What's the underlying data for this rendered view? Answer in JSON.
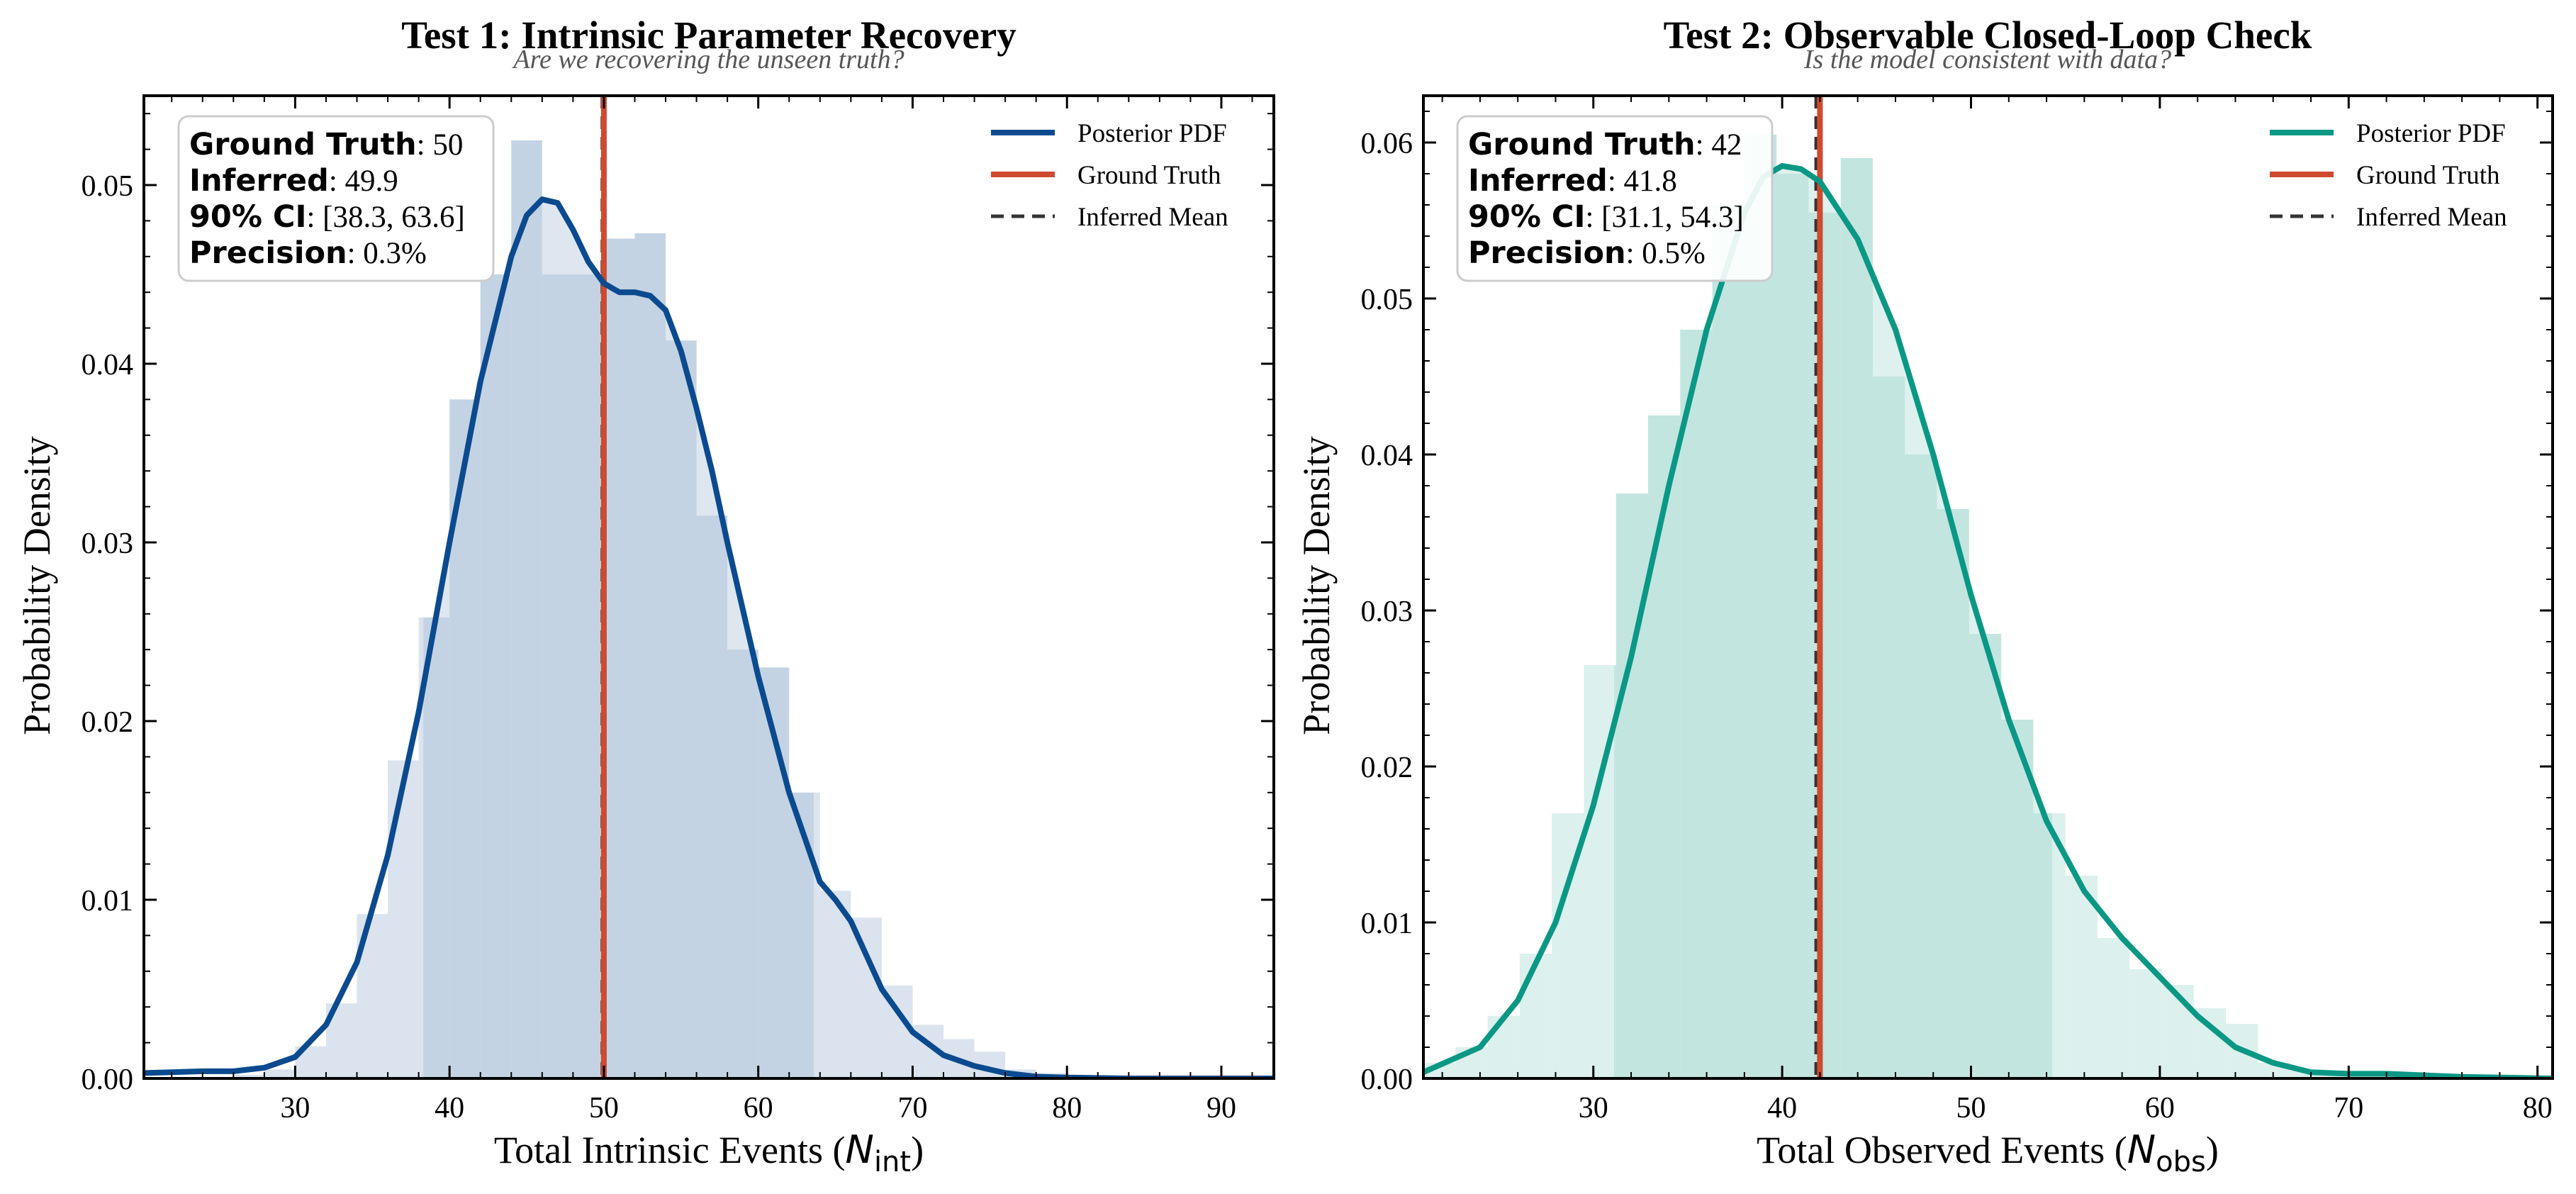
{
  "panels": [
    {
      "title": "Test 1: Intrinsic Parameter Recovery",
      "subtitle": "Are we recovering the unseen truth?",
      "xlabel": "Total Intrinsic Events (",
      "xlabel_sym": "N",
      "xlabel_sub": "int",
      "xlabel_close": ")",
      "ylabel": "Probability Density",
      "infobox": [
        {
          "key": "Ground Truth",
          "value": ": 50"
        },
        {
          "key": "Inferred",
          "value": ": 49.9"
        },
        {
          "key": "90% CI",
          "value": ": [38.3, 63.6]"
        },
        {
          "key": "Precision",
          "value": ": 0.3%"
        }
      ],
      "legend": [
        "Posterior PDF",
        "Ground Truth",
        "Inferred Mean"
      ]
    },
    {
      "title": "Test 2: Observable Closed-Loop Check",
      "subtitle": "Is the model consistent with data?",
      "xlabel": "Total Observed Events (",
      "xlabel_sym": "N",
      "xlabel_sub": "obs",
      "xlabel_close": ")",
      "ylabel": "Probability Density",
      "infobox": [
        {
          "key": "Ground Truth",
          "value": ": 42"
        },
        {
          "key": "Inferred",
          "value": ": 41.8"
        },
        {
          "key": "90% CI",
          "value": ": [31.1, 54.3]"
        },
        {
          "key": "Precision",
          "value": ": 0.5%"
        }
      ],
      "legend": [
        "Posterior PDF",
        "Ground Truth",
        "Inferred Mean"
      ]
    }
  ],
  "chart_data": [
    {
      "type": "area",
      "color": "#0b4a8f",
      "fill_color": "#c3d3e3",
      "hist_light": "#dae3ee",
      "truth_color": "#cf4a2e",
      "mean_color": "#333333",
      "xlim": [
        20.2,
        93.4
      ],
      "ylim": [
        0,
        0.055
      ],
      "xticks": [
        30,
        40,
        50,
        60,
        70,
        80,
        90
      ],
      "yticks": [
        0.0,
        0.01,
        0.02,
        0.03,
        0.04,
        0.05
      ],
      "ytick_labels": [
        "0.00",
        "0.01",
        "0.02",
        "0.03",
        "0.04",
        "0.05"
      ],
      "ground_truth": 50,
      "inferred_mean": 49.9,
      "ci90": [
        38.3,
        63.6
      ],
      "histogram": {
        "edges": [
          20,
          22,
          24,
          26,
          28,
          30,
          32,
          34,
          36,
          38,
          40,
          42,
          44,
          46,
          48,
          50,
          52,
          54,
          56,
          58,
          60,
          62,
          64,
          66,
          68,
          70,
          72,
          74,
          76,
          78,
          80,
          82,
          84,
          86,
          88,
          90,
          92,
          94
        ],
        "density": [
          0.0,
          0.0,
          0.0,
          0.0002,
          0.0005,
          0.0018,
          0.0042,
          0.0092,
          0.0178,
          0.0258,
          0.038,
          0.045,
          0.0525,
          0.045,
          0.045,
          0.047,
          0.0473,
          0.0413,
          0.0315,
          0.024,
          0.023,
          0.016,
          0.0105,
          0.009,
          0.0052,
          0.003,
          0.0022,
          0.0015,
          0.0005,
          0.0003,
          0.0001,
          0.0001,
          0.0,
          0.0,
          0.0,
          0.0,
          0.0
        ]
      },
      "series": [
        {
          "name": "Posterior PDF",
          "x": [
            20.2,
            24,
            26,
            28,
            30,
            32,
            34,
            36,
            38,
            40,
            42,
            44,
            45,
            46,
            47,
            48,
            49,
            50,
            51,
            52,
            53,
            54,
            55,
            56,
            57,
            58,
            60,
            62,
            64,
            65,
            66,
            68,
            70,
            72,
            74,
            76,
            78,
            80,
            84,
            88,
            93.4
          ],
          "y": [
            0.0003,
            0.0004,
            0.0004,
            0.0006,
            0.0012,
            0.003,
            0.0065,
            0.0125,
            0.0205,
            0.03,
            0.039,
            0.046,
            0.0483,
            0.0492,
            0.049,
            0.0475,
            0.0457,
            0.0445,
            0.044,
            0.044,
            0.0438,
            0.043,
            0.0407,
            0.0375,
            0.034,
            0.03,
            0.0225,
            0.016,
            0.011,
            0.01,
            0.0088,
            0.005,
            0.0026,
            0.0013,
            0.0007,
            0.0003,
            0.0001,
            5e-05,
            0.0,
            0.0,
            0.0
          ]
        }
      ]
    },
    {
      "type": "area",
      "color": "#0a9885",
      "fill_color": "#c2e5e0",
      "hist_light": "#dcf0ed",
      "truth_color": "#cf4a2e",
      "mean_color": "#333333",
      "xlim": [
        21.0,
        80.8
      ],
      "ylim": [
        0,
        0.063
      ],
      "xticks": [
        30,
        40,
        50,
        60,
        70,
        80
      ],
      "yticks": [
        0.0,
        0.01,
        0.02,
        0.03,
        0.04,
        0.05,
        0.06
      ],
      "ytick_labels": [
        "0.00",
        "0.01",
        "0.02",
        "0.03",
        "0.04",
        "0.05",
        "0.06"
      ],
      "ground_truth": 42,
      "inferred_mean": 41.8,
      "ci90": [
        31.1,
        54.3
      ],
      "histogram": {
        "edges": [
          21,
          22.7,
          24.4,
          26.1,
          27.8,
          29.5,
          31.2,
          32.9,
          34.6,
          36.3,
          38,
          39.7,
          41.4,
          43.1,
          44.8,
          46.5,
          48.2,
          49.9,
          51.6,
          53.3,
          55,
          56.7,
          58.4,
          60.1,
          61.8,
          63.5,
          65.2,
          66.9,
          68.6,
          70.3,
          72,
          73.7,
          75.4,
          77.1,
          78.8,
          80.5
        ],
        "density": [
          0.001,
          0.002,
          0.004,
          0.008,
          0.017,
          0.0265,
          0.0375,
          0.0425,
          0.048,
          0.056,
          0.0605,
          0.058,
          0.0555,
          0.059,
          0.045,
          0.04,
          0.0365,
          0.0285,
          0.023,
          0.017,
          0.013,
          0.009,
          0.007,
          0.006,
          0.0045,
          0.0035,
          0.001,
          0.0005,
          0.0003,
          0.0003,
          0.0003,
          0.0002,
          0.0,
          0.0,
          0.0
        ]
      },
      "series": [
        {
          "name": "Posterior PDF",
          "x": [
            21.0,
            24,
            26,
            28,
            30,
            32,
            34,
            36,
            38,
            39,
            40,
            41,
            42,
            44,
            46,
            48,
            50,
            52,
            54,
            56,
            58,
            60,
            62,
            64,
            66,
            68,
            70,
            72,
            74,
            76,
            80.8
          ],
          "y": [
            0.0004,
            0.002,
            0.005,
            0.01,
            0.0175,
            0.027,
            0.038,
            0.048,
            0.0555,
            0.0578,
            0.0585,
            0.0583,
            0.0575,
            0.0538,
            0.048,
            0.04,
            0.031,
            0.023,
            0.0165,
            0.012,
            0.009,
            0.0065,
            0.004,
            0.002,
            0.001,
            0.0004,
            0.0003,
            0.0003,
            0.0002,
            0.0001,
            0.0
          ]
        }
      ]
    }
  ]
}
